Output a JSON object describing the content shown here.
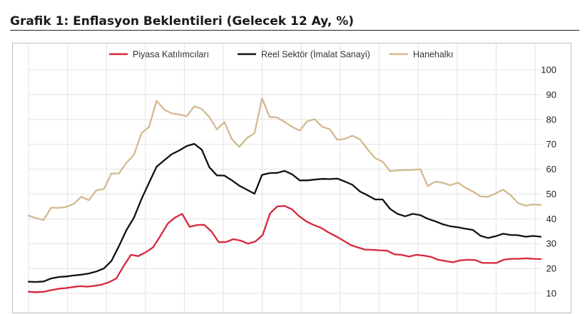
{
  "title": "Grafik 1: Enflasyon Beklentileri (Gelecek 12 Ay, %)",
  "chart_data": {
    "type": "line",
    "ylim": [
      10,
      100
    ],
    "yticks": [
      "100",
      "90",
      "80",
      "70",
      "60",
      "50",
      "40",
      "30",
      "20",
      "10"
    ],
    "y_axis_side": "right",
    "grid": true,
    "legend_position": "top",
    "series": [
      {
        "name": "Piyasa Katılımcıları",
        "color": "#d7263d",
        "values": [
          10.7,
          10.5,
          10.6,
          11.2,
          11.8,
          12.1,
          12.5,
          12.9,
          12.7,
          13.0,
          13.5,
          14.5,
          16,
          21,
          25.5,
          25,
          26.5,
          28.5,
          33,
          38,
          40.5,
          42,
          36.8,
          37.5,
          37.6,
          34.9,
          30.6,
          30.7,
          31.8,
          31.2,
          30,
          30.9,
          33.5,
          42.2,
          45,
          45.2,
          43.8,
          41,
          38.9,
          37.5,
          36.3,
          34.5,
          33,
          31.3,
          29.5,
          28.5,
          27.6,
          27.5,
          27.3,
          27.2,
          25.7,
          25.5,
          24.8,
          25.5,
          25.2,
          24.7,
          23.5,
          23,
          22.5,
          23.3,
          23.5,
          23.4,
          22.3,
          22.2,
          22.3,
          23.6,
          23.9,
          23.9,
          24.1,
          23.9,
          23.8
        ]
      },
      {
        "name": "Reel Sektör (İmalat Sanayi)",
        "color": "#111111",
        "values": [
          14.7,
          14.6,
          14.8,
          16,
          16.6,
          16.8,
          17.2,
          17.5,
          18,
          18.8,
          20,
          23,
          29,
          35.5,
          40.5,
          48,
          54.5,
          61,
          63.5,
          66,
          67.5,
          69.3,
          70.2,
          67.8,
          60.8,
          57.5,
          57.4,
          55.5,
          53.3,
          51.7,
          50.1,
          57.7,
          58.4,
          58.5,
          59.3,
          57.9,
          55.5,
          55.5,
          55.8,
          56.1,
          56,
          56.2,
          55,
          53.7,
          51,
          49.5,
          47.8,
          47.8,
          44,
          42,
          41,
          42,
          41.5,
          40,
          39,
          37.8,
          37,
          36.6,
          36,
          35.5,
          33.2,
          32.3,
          33,
          34,
          33.5,
          33.4,
          32.8,
          33.1,
          32.8
        ]
      },
      {
        "name": "Hanehalkı",
        "color": "#d3b98e",
        "values": [
          41.3,
          40.3,
          39.5,
          44.5,
          44.4,
          44.8,
          46,
          48.9,
          47.5,
          51.5,
          52,
          58.2,
          58.3,
          62.6,
          65.8,
          74.5,
          77,
          87.5,
          84,
          82.5,
          82,
          81.3,
          85.3,
          84.2,
          81,
          76,
          79,
          72,
          69,
          72.5,
          74.5,
          88.5,
          81,
          80.8,
          79,
          77,
          75.5,
          79.3,
          80.1,
          77,
          76,
          71.8,
          72.2,
          73.5,
          72,
          68,
          64.5,
          63,
          59.2,
          59.5,
          59.6,
          59.7,
          60,
          53.2,
          55,
          54.5,
          53.5,
          54.6,
          52.5,
          51,
          49,
          48.9,
          50.2,
          51.8,
          49.5,
          46.3,
          45.3,
          45.8,
          45.6
        ]
      }
    ]
  }
}
